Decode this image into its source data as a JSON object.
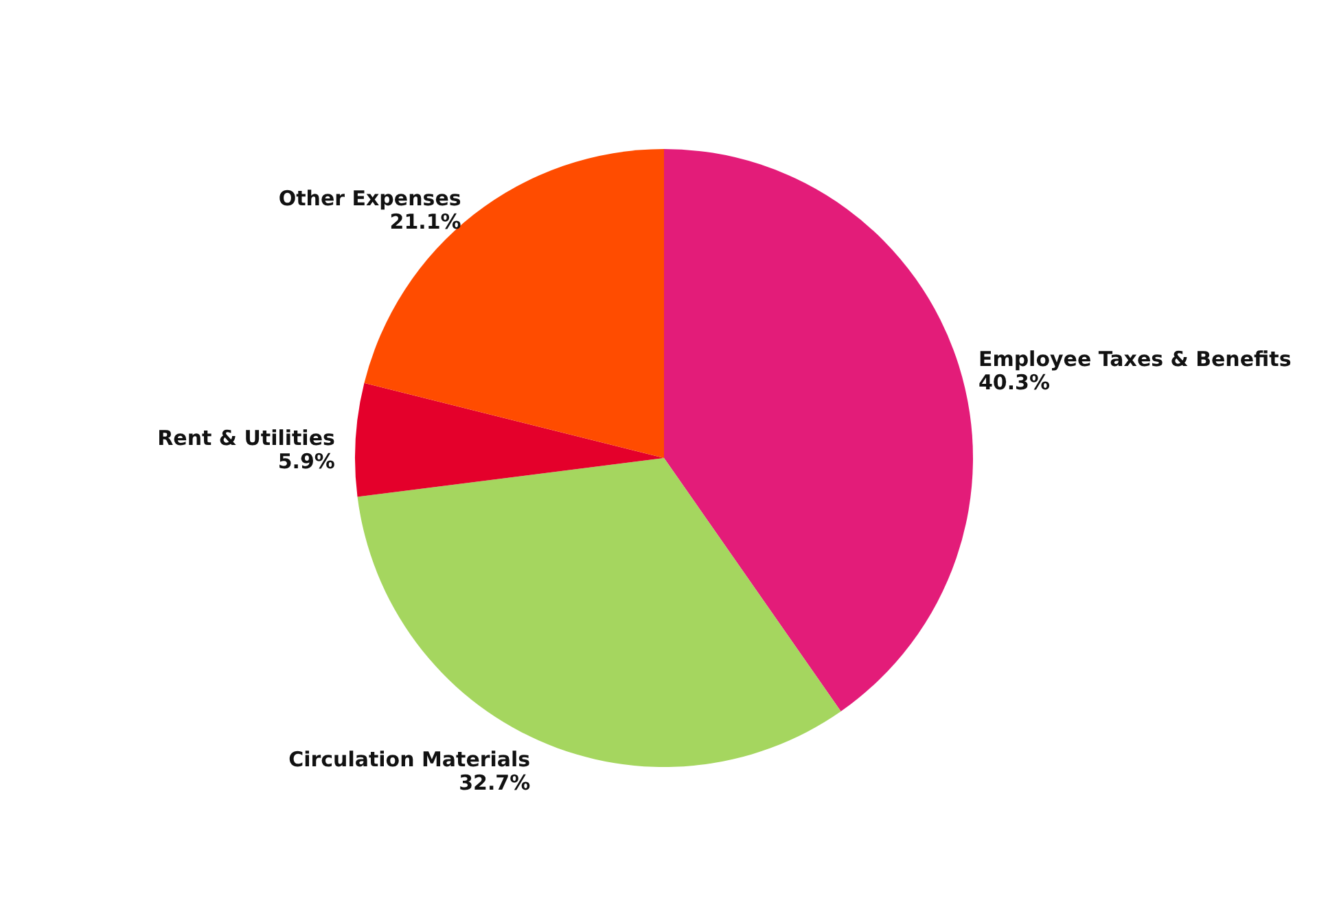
{
  "chart_data": {
    "type": "pie",
    "categories": [
      "Employee Taxes & Benefits",
      "Circulation Materials",
      "Rent & Utilities",
      "Other Expenses"
    ],
    "values": [
      40.3,
      32.7,
      5.9,
      21.1
    ],
    "value_labels": [
      "40.3%",
      "32.7%",
      "5.9%",
      "21.1%"
    ],
    "colors": [
      "#e31c79",
      "#a5d65f",
      "#e4002b",
      "#ff4c00"
    ],
    "legend": false
  }
}
